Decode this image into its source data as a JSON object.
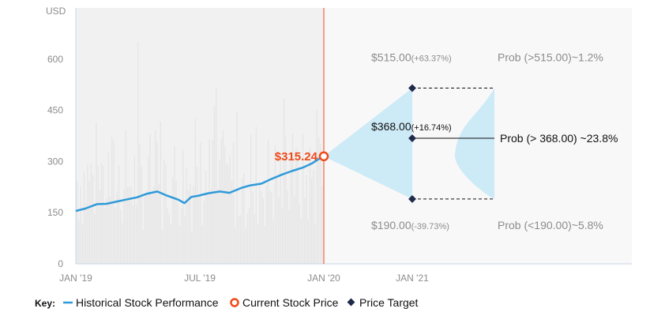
{
  "colors": {
    "historical": "#2f9ad9",
    "volume": "#e6e6e6",
    "current": "#f04a1a",
    "cone": "#cdeaf7",
    "target": "#1f2a4a",
    "axis": "#c5d5e8"
  },
  "chart_data": {
    "type": "line",
    "y_unit": "USD",
    "ylim": [
      0,
      750
    ],
    "yticks": [
      "0",
      "150",
      "300",
      "450",
      "600"
    ],
    "xticks": [
      "JAN '19",
      "JUL '19",
      "JAN '20",
      "JAN '21"
    ],
    "series": [
      {
        "name": "Historical Stock Performance",
        "points": [
          [
            "2019-01-01",
            155
          ],
          [
            "2019-01-15",
            162
          ],
          [
            "2019-02-01",
            175
          ],
          [
            "2019-02-15",
            176
          ],
          [
            "2019-03-01",
            182
          ],
          [
            "2019-03-15",
            188
          ],
          [
            "2019-04-01",
            195
          ],
          [
            "2019-04-15",
            205
          ],
          [
            "2019-05-01",
            212
          ],
          [
            "2019-05-15",
            200
          ],
          [
            "2019-06-01",
            188
          ],
          [
            "2019-06-10",
            178
          ],
          [
            "2019-06-20",
            196
          ],
          [
            "2019-07-01",
            200
          ],
          [
            "2019-07-15",
            207
          ],
          [
            "2019-08-01",
            212
          ],
          [
            "2019-08-15",
            208
          ],
          [
            "2019-09-01",
            222
          ],
          [
            "2019-09-15",
            230
          ],
          [
            "2019-10-01",
            235
          ],
          [
            "2019-10-15",
            248
          ],
          [
            "2019-11-01",
            262
          ],
          [
            "2019-11-15",
            272
          ],
          [
            "2019-12-01",
            282
          ],
          [
            "2019-12-15",
            295
          ],
          [
            "2019-12-31",
            315.24
          ]
        ]
      }
    ],
    "current_price": {
      "legend": "Current Stock Price",
      "date": "2019-12-31",
      "value": 315.24,
      "label": "$315.24"
    },
    "price_targets": {
      "legend": "Price Target",
      "date": "2021-01-01",
      "items": [
        {
          "value": 515.0,
          "price": "$515.00",
          "change": "(+63.37%)",
          "prob": "Prob (>515.00)~1.2%"
        },
        {
          "value": 368.0,
          "price": "$368.00",
          "change": "(+16.74%)",
          "prob": "Prob (> 368.00) ~23.8%"
        },
        {
          "value": 190.0,
          "price": "$190.00",
          "change": "(-39.73%)",
          "prob": "Prob (<190.00)~5.8%"
        }
      ]
    },
    "legend_placement": "bottom-left",
    "grid": false
  },
  "legend": {
    "key_label": "Key:",
    "historical": "Historical Stock Performance",
    "current": "Current Stock Price",
    "target": "Price Target"
  }
}
